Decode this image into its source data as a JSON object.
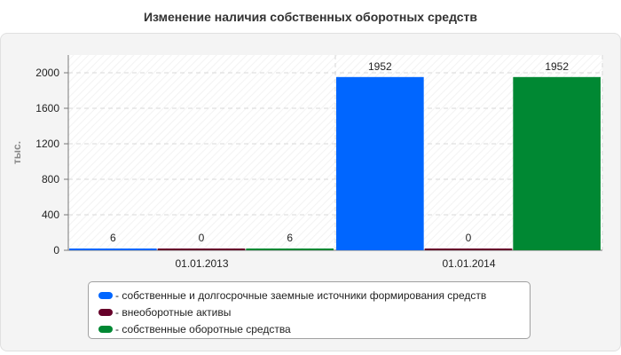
{
  "title": "Изменение наличия собственных оборотных средств",
  "chart_data": {
    "type": "bar",
    "ylabel": "тыс.",
    "xlabel": "",
    "ylim": [
      0,
      2200
    ],
    "yticks": [
      0,
      400,
      800,
      1200,
      1600,
      2000
    ],
    "categories": [
      "01.01.2013",
      "01.01.2014"
    ],
    "grid": true,
    "legend_position": "bottom",
    "series": [
      {
        "name": "- собственные и долгосрочные заемные источники формирования средств",
        "color": "#0066ff",
        "values": [
          6,
          1952
        ]
      },
      {
        "name": "- внеоборотные активы",
        "color": "#66002a",
        "values": [
          0,
          0
        ]
      },
      {
        "name": "- собственные оборотные средства",
        "color": "#008833",
        "values": [
          6,
          1952
        ]
      }
    ]
  }
}
